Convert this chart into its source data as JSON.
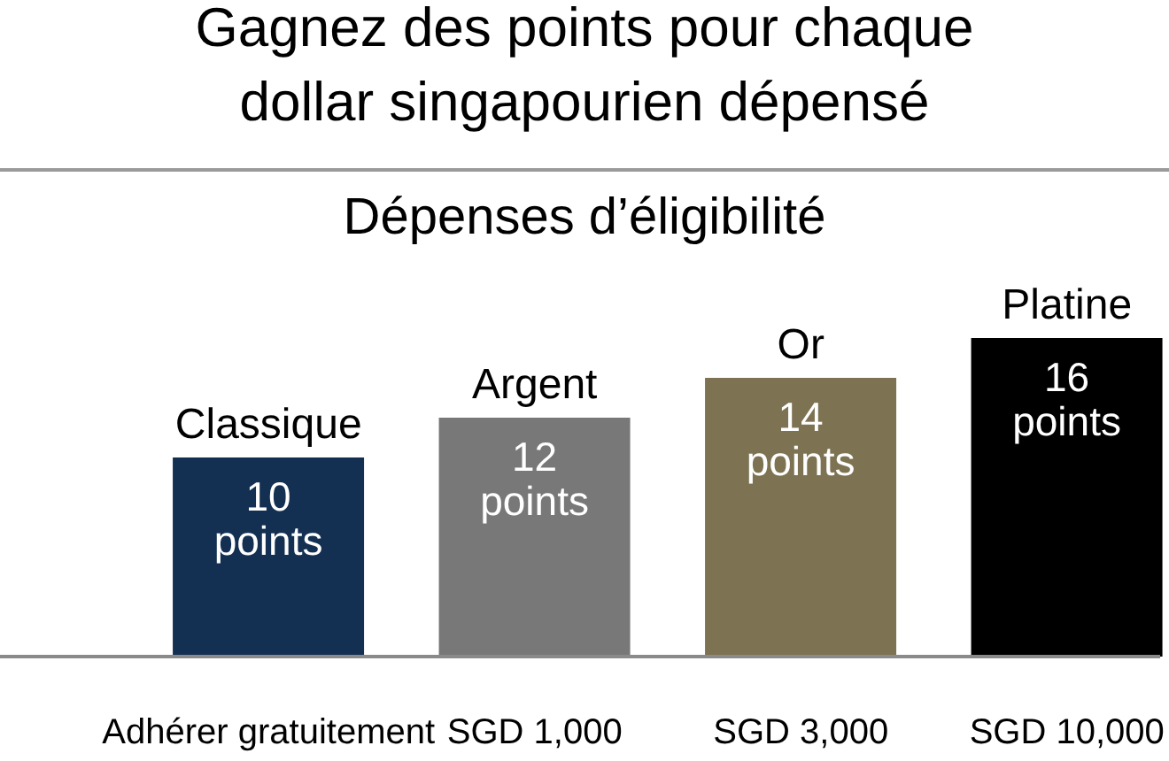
{
  "chart_data": {
    "type": "bar",
    "title": "Gagnez des points pour chaque dollar singapourien dépensé",
    "subtitle": "Dépenses d’éligibilité",
    "categories": [
      "Adhérer gratuitement",
      "SGD 1,000",
      "SGD 3,000",
      "SGD 10,000"
    ],
    "values": [
      10,
      12,
      14,
      16
    ],
    "colors": [
      "#132f51",
      "#787878",
      "#7d7352",
      "#000000"
    ],
    "value_labels": [
      "10 points",
      "12 points",
      "14 points",
      "16 points"
    ],
    "annotations": [
      {
        "text": "Classique",
        "x": "Adhérer gratuitement",
        "y": 10
      },
      {
        "text": "Argent",
        "x": "SGD 1,000",
        "y": 12
      },
      {
        "text": "Or",
        "x": "SGD 3,000",
        "y": 14
      },
      {
        "text": "Platine",
        "x": "SGD 10,000",
        "y": 16
      }
    ]
  }
}
